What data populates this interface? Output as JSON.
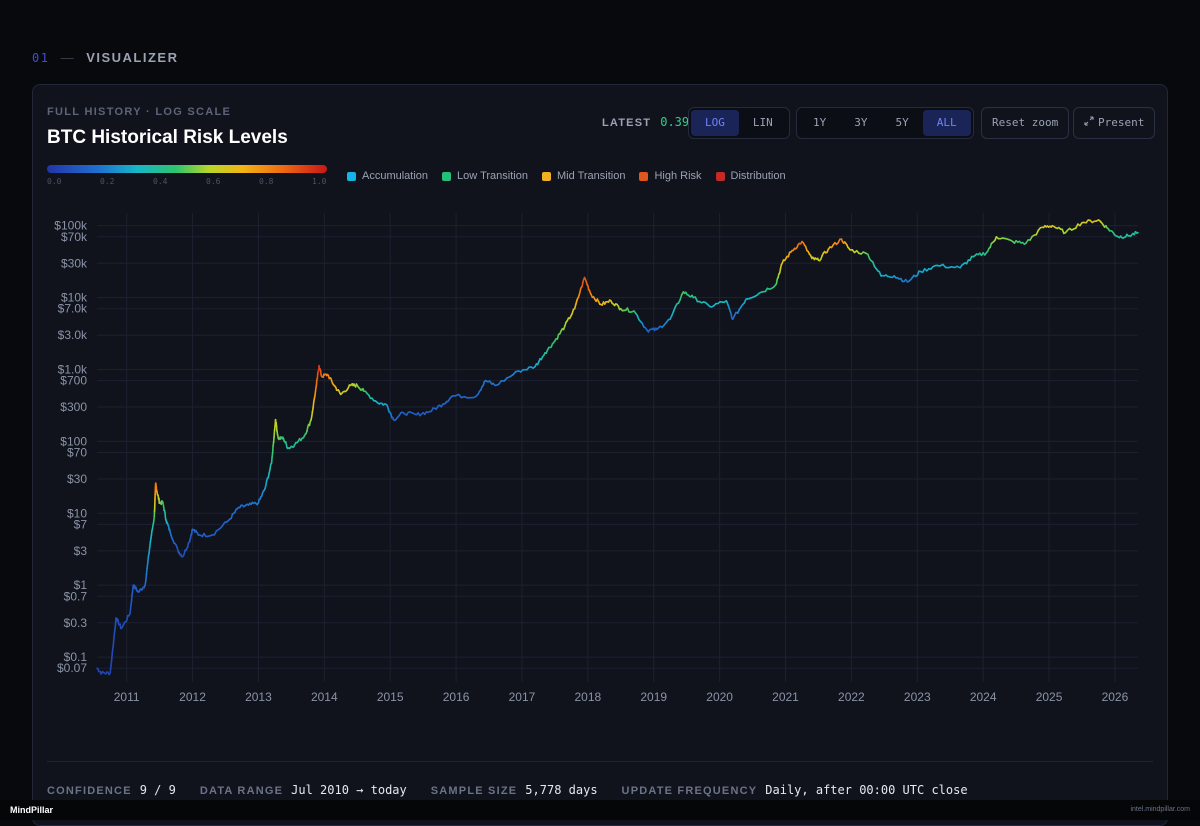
{
  "section": {
    "number": "01",
    "dash": "—",
    "title": "VISUALIZER"
  },
  "card": {
    "kicker": "FULL HISTORY · LOG SCALE",
    "title": "BTC Historical Risk Levels"
  },
  "latest": {
    "label": "LATEST",
    "value": "0.39"
  },
  "scale_toggle": [
    {
      "label": "LOG",
      "active": true
    },
    {
      "label": "LIN",
      "active": false
    }
  ],
  "range_toggle": [
    {
      "label": "1Y",
      "active": false
    },
    {
      "label": "3Y",
      "active": false
    },
    {
      "label": "5Y",
      "active": false
    },
    {
      "label": "ALL",
      "active": true
    }
  ],
  "buttons": {
    "reset_zoom": "Reset zoom",
    "present": "Present"
  },
  "risk_scale": {
    "labels": [
      "0.0",
      "0.2",
      "0.4",
      "0.6",
      "0.8",
      "1.0"
    ]
  },
  "legend": [
    {
      "label": "Accumulation",
      "color": "#14b4e6"
    },
    {
      "label": "Low Transition",
      "color": "#22c07a"
    },
    {
      "label": "Mid Transition",
      "color": "#f2b01e"
    },
    {
      "label": "High Risk",
      "color": "#e0571d"
    },
    {
      "label": "Distribution",
      "color": "#c62828"
    }
  ],
  "footer": [
    {
      "label": "CONFIDENCE",
      "value": "9 / 9"
    },
    {
      "label": "DATA RANGE",
      "value": "Jul 2010 → today"
    },
    {
      "label": "SAMPLE SIZE",
      "value": "5,778 days"
    },
    {
      "label": "UPDATE FREQUENCY",
      "value": "Daily, after 00:00 UTC close"
    }
  ],
  "bottom_bar": {
    "brand": "MindPillar",
    "url": "intel.mindpillar.com"
  },
  "chart_data": {
    "type": "line",
    "xlabel": "",
    "ylabel": "",
    "y_scale": "log",
    "grid": true,
    "xlim": [
      2010.55,
      2026.35
    ],
    "ylim": [
      0.045,
      150000
    ],
    "x_ticks": [
      2011,
      2012,
      2013,
      2014,
      2015,
      2016,
      2017,
      2018,
      2019,
      2020,
      2021,
      2022,
      2023,
      2024,
      2025,
      2026
    ],
    "y_ticks": [
      {
        "value": 100000,
        "label": "$100k"
      },
      {
        "value": 70000,
        "label": "$70k"
      },
      {
        "value": 30000,
        "label": "$30k"
      },
      {
        "value": 10000,
        "label": "$10k"
      },
      {
        "value": 7000,
        "label": "$7.0k"
      },
      {
        "value": 3000,
        "label": "$3.0k"
      },
      {
        "value": 1000,
        "label": "$1.0k"
      },
      {
        "value": 700,
        "label": "$700"
      },
      {
        "value": 300,
        "label": "$300"
      },
      {
        "value": 100,
        "label": "$100"
      },
      {
        "value": 70,
        "label": "$70"
      },
      {
        "value": 30,
        "label": "$30"
      },
      {
        "value": 10,
        "label": "$10"
      },
      {
        "value": 7,
        "label": "$7"
      },
      {
        "value": 3,
        "label": "$3"
      },
      {
        "value": 1,
        "label": "$1"
      },
      {
        "value": 0.7,
        "label": "$0.7"
      },
      {
        "value": 0.3,
        "label": "$0.3"
      },
      {
        "value": 0.1,
        "label": "$0.1"
      },
      {
        "value": 0.07,
        "label": "$0.07"
      }
    ],
    "series": [
      {
        "points": [
          [
            2010.55,
            0.07,
            0.05
          ],
          [
            2010.62,
            0.06,
            0.05
          ],
          [
            2010.75,
            0.06,
            0.05
          ],
          [
            2010.84,
            0.35,
            0.08
          ],
          [
            2010.92,
            0.25,
            0.07
          ],
          [
            2011.05,
            0.4,
            0.09
          ],
          [
            2011.1,
            1.0,
            0.12
          ],
          [
            2011.18,
            0.8,
            0.12
          ],
          [
            2011.28,
            1.0,
            0.14
          ],
          [
            2011.36,
            4.0,
            0.3
          ],
          [
            2011.42,
            9.0,
            0.45
          ],
          [
            2011.44,
            26.0,
            0.85
          ],
          [
            2011.46,
            20.0,
            0.75
          ],
          [
            2011.5,
            14.0,
            0.55
          ],
          [
            2011.55,
            14.0,
            0.5
          ],
          [
            2011.6,
            8.0,
            0.35
          ],
          [
            2011.66,
            5.5,
            0.2
          ],
          [
            2011.78,
            3.0,
            0.1
          ],
          [
            2011.85,
            2.5,
            0.08
          ],
          [
            2011.95,
            4.0,
            0.1
          ],
          [
            2012.0,
            6.0,
            0.15
          ],
          [
            2012.1,
            5.0,
            0.13
          ],
          [
            2012.3,
            5.0,
            0.12
          ],
          [
            2012.55,
            8.0,
            0.15
          ],
          [
            2012.7,
            12.0,
            0.18
          ],
          [
            2012.85,
            13.0,
            0.18
          ],
          [
            2013.0,
            14.0,
            0.2
          ],
          [
            2013.1,
            22.0,
            0.25
          ],
          [
            2013.2,
            50.0,
            0.38
          ],
          [
            2013.26,
            200.0,
            0.62
          ],
          [
            2013.3,
            110.0,
            0.52
          ],
          [
            2013.38,
            110.0,
            0.45
          ],
          [
            2013.45,
            80.0,
            0.38
          ],
          [
            2013.55,
            90.0,
            0.4
          ],
          [
            2013.7,
            120.0,
            0.45
          ],
          [
            2013.8,
            200.0,
            0.55
          ],
          [
            2013.88,
            600.0,
            0.8
          ],
          [
            2013.92,
            1130.0,
            0.95
          ],
          [
            2013.96,
            800.0,
            0.85
          ],
          [
            2014.05,
            850.0,
            0.8
          ],
          [
            2014.15,
            600.0,
            0.72
          ],
          [
            2014.25,
            450.0,
            0.62
          ],
          [
            2014.4,
            600.0,
            0.62
          ],
          [
            2014.5,
            600.0,
            0.55
          ],
          [
            2014.6,
            500.0,
            0.48
          ],
          [
            2014.8,
            350.0,
            0.32
          ],
          [
            2014.95,
            320.0,
            0.28
          ],
          [
            2015.05,
            200.0,
            0.15
          ],
          [
            2015.2,
            250.0,
            0.14
          ],
          [
            2015.4,
            235.0,
            0.12
          ],
          [
            2015.6,
            260.0,
            0.12
          ],
          [
            2015.8,
            330.0,
            0.14
          ],
          [
            2015.95,
            430.0,
            0.16
          ],
          [
            2016.3,
            420.0,
            0.15
          ],
          [
            2016.45,
            700.0,
            0.2
          ],
          [
            2016.6,
            600.0,
            0.18
          ],
          [
            2016.95,
            950.0,
            0.22
          ],
          [
            2017.2,
            1100.0,
            0.28
          ],
          [
            2017.35,
            1700.0,
            0.38
          ],
          [
            2017.5,
            2500.0,
            0.45
          ],
          [
            2017.65,
            4000.0,
            0.55
          ],
          [
            2017.8,
            7000.0,
            0.65
          ],
          [
            2017.95,
            19000.0,
            0.9
          ],
          [
            2018.05,
            11000.0,
            0.8
          ],
          [
            2018.2,
            8000.0,
            0.7
          ],
          [
            2018.35,
            9000.0,
            0.65
          ],
          [
            2018.5,
            7000.0,
            0.55
          ],
          [
            2018.7,
            6500.0,
            0.45
          ],
          [
            2018.9,
            3500.0,
            0.15
          ],
          [
            2019.05,
            3600.0,
            0.14
          ],
          [
            2019.25,
            5000.0,
            0.25
          ],
          [
            2019.45,
            12000.0,
            0.48
          ],
          [
            2019.6,
            10000.0,
            0.42
          ],
          [
            2019.85,
            7500.0,
            0.32
          ],
          [
            2020.1,
            9000.0,
            0.35
          ],
          [
            2020.2,
            5000.0,
            0.15
          ],
          [
            2020.4,
            9500.0,
            0.3
          ],
          [
            2020.6,
            11500.0,
            0.35
          ],
          [
            2020.85,
            15000.0,
            0.45
          ],
          [
            2020.95,
            30000.0,
            0.65
          ],
          [
            2021.1,
            45000.0,
            0.75
          ],
          [
            2021.25,
            60000.0,
            0.85
          ],
          [
            2021.4,
            35000.0,
            0.65
          ],
          [
            2021.5,
            33000.0,
            0.6
          ],
          [
            2021.65,
            47000.0,
            0.7
          ],
          [
            2021.85,
            65000.0,
            0.82
          ],
          [
            2021.98,
            46000.0,
            0.65
          ],
          [
            2022.25,
            40000.0,
            0.5
          ],
          [
            2022.45,
            20000.0,
            0.3
          ],
          [
            2022.65,
            20000.0,
            0.27
          ],
          [
            2022.85,
            16500.0,
            0.18
          ],
          [
            2023.05,
            23000.0,
            0.28
          ],
          [
            2023.3,
            28000.0,
            0.32
          ],
          [
            2023.65,
            26000.0,
            0.28
          ],
          [
            2023.85,
            37000.0,
            0.38
          ],
          [
            2024.05,
            42000.0,
            0.42
          ],
          [
            2024.2,
            70000.0,
            0.58
          ],
          [
            2024.45,
            60000.0,
            0.5
          ],
          [
            2024.65,
            57000.0,
            0.45
          ],
          [
            2024.9,
            95000.0,
            0.62
          ],
          [
            2025.05,
            100000.0,
            0.65
          ],
          [
            2025.25,
            80000.0,
            0.55
          ],
          [
            2025.5,
            110000.0,
            0.62
          ],
          [
            2025.75,
            120000.0,
            0.65
          ],
          [
            2025.9,
            90000.0,
            0.5
          ],
          [
            2026.05,
            70000.0,
            0.4
          ],
          [
            2026.2,
            72000.0,
            0.38
          ],
          [
            2026.35,
            80000.0,
            0.39
          ]
        ]
      }
    ]
  }
}
